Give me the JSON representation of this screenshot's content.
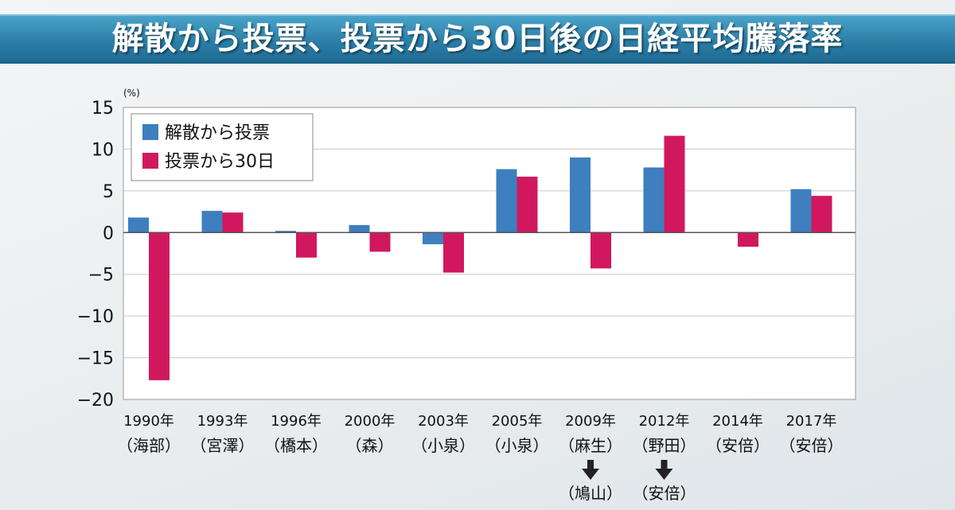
{
  "title": "解散から投票、投票から30日後の日経平均騰落率",
  "colors": {
    "title_bar": "#2c7fa8",
    "series_blue": "#3d7fbf",
    "series_magenta": "#d1185f",
    "plot_bg": "#ffffff"
  },
  "chart_data": {
    "type": "bar",
    "title": "解散から投票、投票から30日後の日経平均騰落率",
    "ylabel": "(%)",
    "xlabel": "",
    "ylim": [
      -20,
      15
    ],
    "yticks": [
      15,
      10,
      5,
      0,
      -5,
      -10,
      -15,
      -20
    ],
    "ytick_labels": [
      "15",
      "10",
      "5",
      "0",
      "−5",
      "−10",
      "−15",
      "−20"
    ],
    "grid": true,
    "legend_position": "top-left",
    "categories": [
      {
        "year": "1990年",
        "pm": "（海部）"
      },
      {
        "year": "1993年",
        "pm": "（宮澤）"
      },
      {
        "year": "1996年",
        "pm": "（橋本）"
      },
      {
        "year": "2000年",
        "pm": "（森）"
      },
      {
        "year": "2003年",
        "pm": "（小泉）"
      },
      {
        "year": "2005年",
        "pm": "（小泉）"
      },
      {
        "year": "2009年",
        "pm": "（麻生）",
        "note": "（鳩山）"
      },
      {
        "year": "2012年",
        "pm": "（野田）",
        "note": "（安倍）"
      },
      {
        "year": "2014年",
        "pm": "（安倍）"
      },
      {
        "year": "2017年",
        "pm": "（安倍）"
      }
    ],
    "series": [
      {
        "name": "解散から投票",
        "values": [
          1.8,
          2.6,
          0.2,
          0.9,
          -1.4,
          7.6,
          9.0,
          7.8,
          0.0,
          5.2
        ]
      },
      {
        "name": "投票から30日",
        "values": [
          -17.7,
          2.4,
          -3.0,
          -2.3,
          -4.8,
          6.7,
          -4.3,
          11.6,
          -1.7,
          4.4
        ]
      }
    ]
  }
}
